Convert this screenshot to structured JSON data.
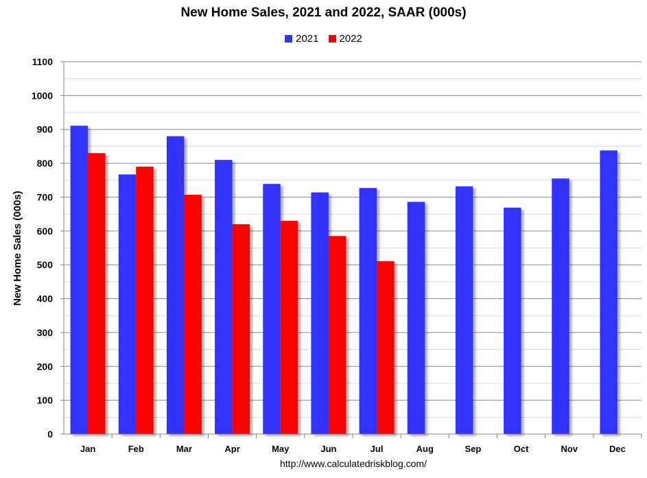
{
  "chart_data": {
    "type": "bar",
    "title": "New Home Sales,  2021 and 2022, SAAR (000s)",
    "ylabel": "New Home Sales (000s)",
    "xlabel": "",
    "categories": [
      "Jan",
      "Feb",
      "Mar",
      "Apr",
      "May",
      "Jun",
      "Jul",
      "Aug",
      "Sep",
      "Oct",
      "Nov",
      "Dec"
    ],
    "series": [
      {
        "name": "2021",
        "color": "#3333ff",
        "values": [
          911,
          767,
          880,
          810,
          739,
          714,
          727,
          686,
          732,
          669,
          755,
          838
        ]
      },
      {
        "name": "2022",
        "color": "#ff0000",
        "values": [
          830,
          790,
          707,
          620,
          630,
          585,
          511,
          null,
          null,
          null,
          null,
          null
        ]
      }
    ],
    "ylim": [
      0,
      1100
    ],
    "yticks": [
      0,
      100,
      200,
      300,
      400,
      500,
      600,
      700,
      800,
      900,
      1000,
      1100
    ],
    "grid": true,
    "legend_position": "top-center"
  },
  "source": "http://www.calculatedriskblog.com/"
}
